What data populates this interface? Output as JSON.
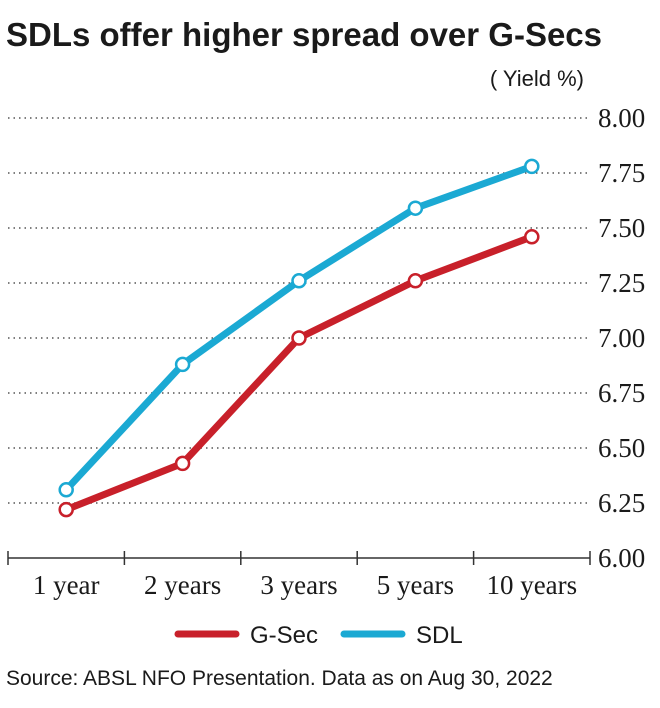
{
  "chart_data": {
    "type": "line",
    "title": "SDLs offer higher spread over G-Secs",
    "ylabel": "( Yield %)",
    "categories": [
      "1 year",
      "2 years",
      "3 years",
      "5 years",
      "10 years"
    ],
    "ylim": [
      6.0,
      8.0
    ],
    "yticks": [
      "8.00",
      "7.75",
      "7.50",
      "7.25",
      "7.00",
      "6.75",
      "6.50",
      "6.25",
      "6.00"
    ],
    "grid": true,
    "legend_position": "bottom",
    "series": [
      {
        "name": "G-Sec",
        "values": [
          6.22,
          6.43,
          7.0,
          7.26,
          7.46
        ],
        "color": "#c8202a"
      },
      {
        "name": "SDL",
        "values": [
          6.31,
          6.88,
          7.26,
          7.59,
          7.78
        ],
        "color": "#1ba9d3"
      }
    ]
  },
  "source": "Source: ABSL NFO Presentation. Data as on Aug 30, 2022"
}
